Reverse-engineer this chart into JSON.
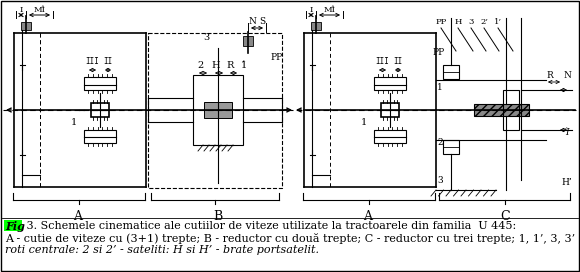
{
  "background_color": "#ffffff",
  "border_color": "#000000",
  "fig_label": "Fig",
  "fig_label_bg": "#00ff00",
  "caption_line1": " 3. Schemele cinematice ale cutiilor de viteze utilizate la tractoarele din familia  U 445:",
  "caption_line2": "A - cutie de viteze cu (3+1) trepte; B - reductor cu două trepte; C - reductor cu trei trepte; 1, 1’, 3, 3’ -",
  "caption_line3": "roti centrale: 2 si 2’ - sateliti: H si H’ - brate portsatelit.",
  "font_size_caption": 8.0,
  "figsize": [
    5.8,
    2.72
  ],
  "dpi": 100
}
